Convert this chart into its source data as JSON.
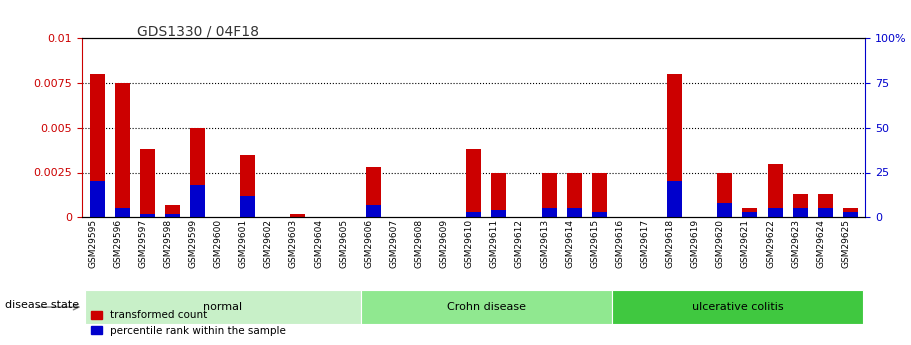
{
  "title": "GDS1330 / 04F18",
  "samples": [
    "GSM29595",
    "GSM29596",
    "GSM29597",
    "GSM29598",
    "GSM29599",
    "GSM29600",
    "GSM29601",
    "GSM29602",
    "GSM29603",
    "GSM29604",
    "GSM29605",
    "GSM29606",
    "GSM29607",
    "GSM29608",
    "GSM29609",
    "GSM29610",
    "GSM29611",
    "GSM29612",
    "GSM29613",
    "GSM29614",
    "GSM29615",
    "GSM29616",
    "GSM29617",
    "GSM29618",
    "GSM29619",
    "GSM29620",
    "GSM29621",
    "GSM29622",
    "GSM29623",
    "GSM29624",
    "GSM29625"
  ],
  "red_values": [
    0.008,
    0.0075,
    0.0038,
    0.0007,
    0.005,
    0.0,
    0.0035,
    0.0,
    0.0002,
    0.0,
    0.0,
    0.0028,
    0.0,
    0.0,
    0.0,
    0.0038,
    0.0025,
    0.0,
    0.0025,
    0.0025,
    0.0025,
    0.0,
    0.0,
    0.008,
    0.0,
    0.0025,
    0.0005,
    0.003,
    0.0013,
    0.0013,
    0.0005
  ],
  "blue_values": [
    0.002,
    0.0005,
    0.0002,
    0.0002,
    0.0018,
    0.0,
    0.0012,
    0.0,
    0.0,
    0.0,
    0.0,
    0.0007,
    0.0,
    0.0,
    0.0,
    0.0003,
    0.0004,
    0.0,
    0.0005,
    0.0005,
    0.0003,
    0.0,
    0.0,
    0.002,
    0.0,
    0.0008,
    0.0003,
    0.0005,
    0.0005,
    0.0005,
    0.0003
  ],
  "groups": [
    {
      "label": "normal",
      "start": 0,
      "end": 11,
      "color": "#c8f0c8"
    },
    {
      "label": "Crohn disease",
      "start": 11,
      "end": 21,
      "color": "#90e890"
    },
    {
      "label": "ulcerative colitis",
      "start": 21,
      "end": 31,
      "color": "#40c840"
    }
  ],
  "ylim_left": [
    0,
    0.01
  ],
  "ylim_right": [
    0,
    100
  ],
  "yticks_left": [
    0,
    0.0025,
    0.005,
    0.0075,
    0.01
  ],
  "yticks_right": [
    0,
    25,
    50,
    75,
    100
  ],
  "ytick_labels_left": [
    "0",
    "0.0025",
    "0.005",
    "0.0075",
    "0.01"
  ],
  "ytick_labels_right": [
    "0",
    "25",
    "50",
    "75",
    "100%"
  ],
  "bar_width": 0.6,
  "red_color": "#cc0000",
  "blue_color": "#0000cc",
  "title_color": "#333333",
  "left_axis_color": "#cc0000",
  "right_axis_color": "#0000cc",
  "disease_state_label": "disease state",
  "legend_red": "transformed count",
  "legend_blue": "percentile rank within the sample"
}
